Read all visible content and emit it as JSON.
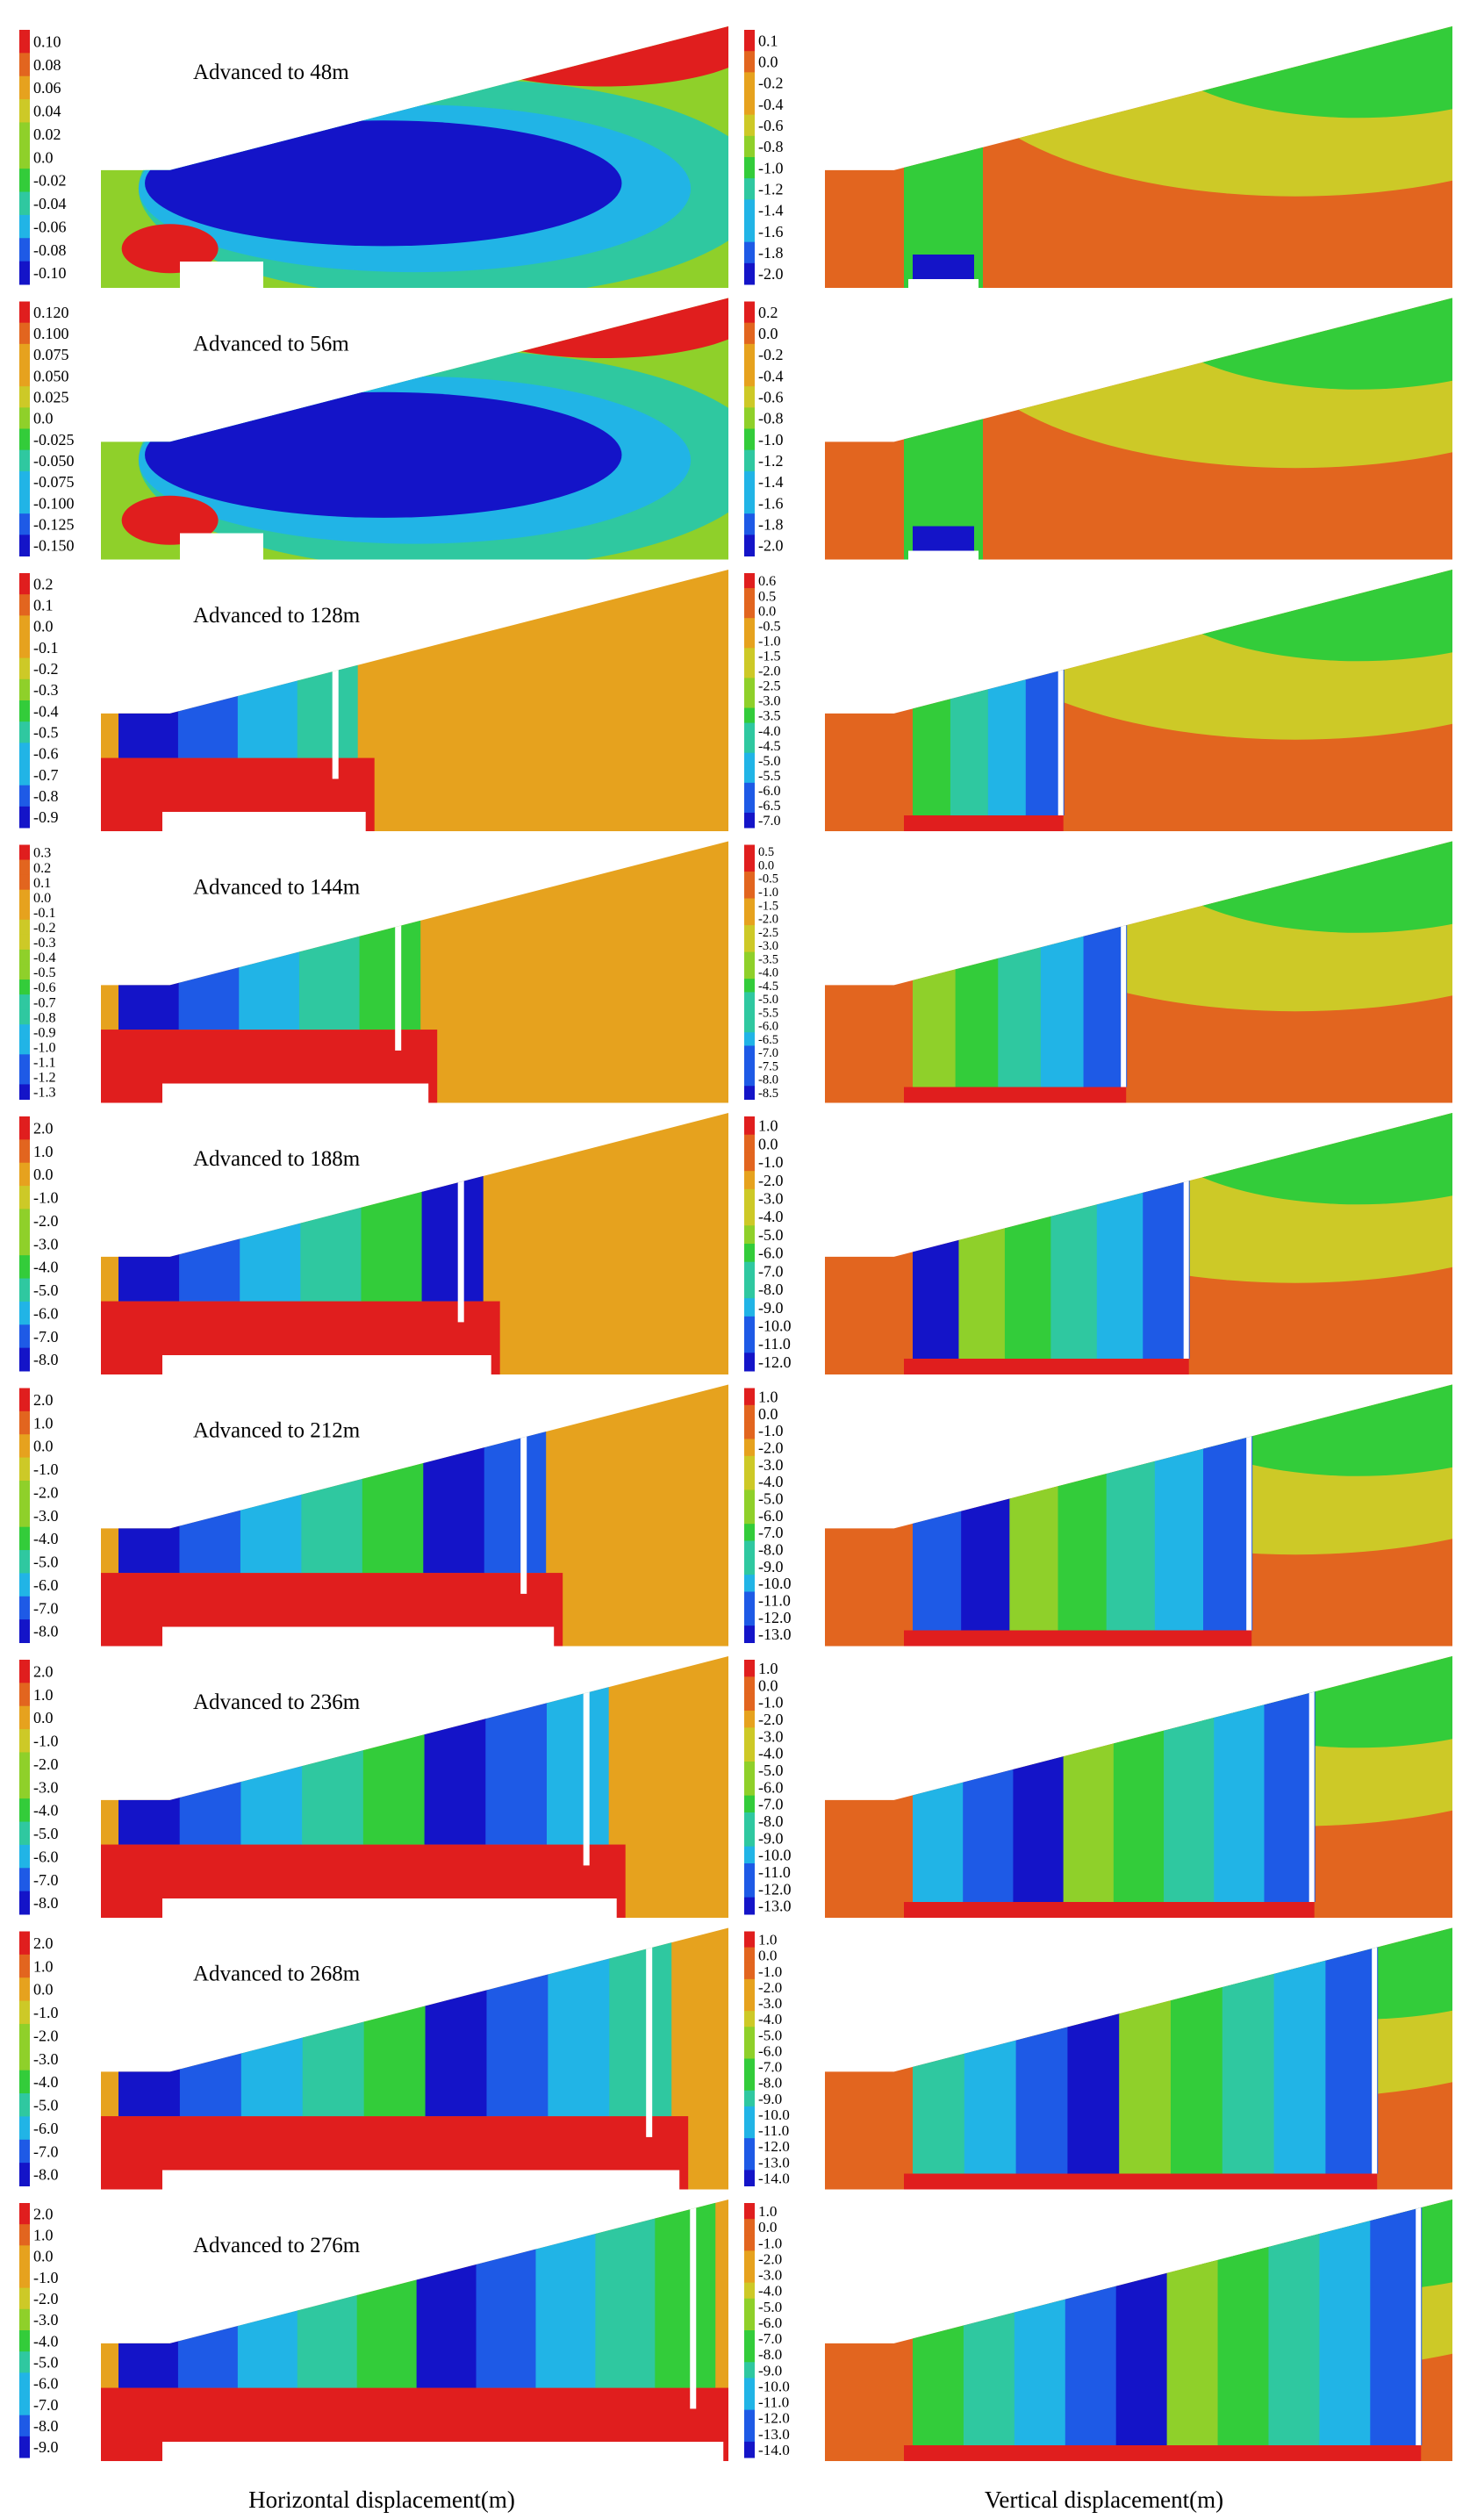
{
  "figure": {
    "x_captions": [
      "Horizontal displacement(m)",
      "Vertical displacement(m)"
    ]
  },
  "chart_data": {
    "type": "heatmap",
    "description_unit": "m",
    "colormap": [
      "#1414c8",
      "#1e5ae6",
      "#21b4e6",
      "#2fc8a0",
      "#33cc3a",
      "#8fd02a",
      "#cdc927",
      "#e6a21e",
      "#e2651f",
      "#e01e1e"
    ],
    "stages": [
      {
        "title": "Advanced to 48m",
        "horizontal_ticks": [
          "0.10",
          "0.08",
          "0.06",
          "0.04",
          "0.02",
          "0.0",
          "-0.02",
          "-0.04",
          "-0.06",
          "-0.08",
          "-0.10"
        ],
        "vertical_ticks": [
          "0.1",
          "0.0",
          "-0.2",
          "-0.4",
          "-0.6",
          "-0.8",
          "-1.0",
          "-1.2",
          "-1.4",
          "-1.6",
          "-1.8",
          "-2.0"
        ]
      },
      {
        "title": "Advanced to 56m",
        "horizontal_ticks": [
          "0.120",
          "0.100",
          "0.075",
          "0.050",
          "0.025",
          "0.0",
          "-0.025",
          "-0.050",
          "-0.075",
          "-0.100",
          "-0.125",
          "-0.150"
        ],
        "vertical_ticks": [
          "0.2",
          "0.0",
          "-0.2",
          "-0.4",
          "-0.6",
          "-0.8",
          "-1.0",
          "-1.2",
          "-1.4",
          "-1.6",
          "-1.8",
          "-2.0"
        ]
      },
      {
        "title": "Advanced to 128m",
        "horizontal_ticks": [
          "0.2",
          "0.1",
          "0.0",
          "-0.1",
          "-0.2",
          "-0.3",
          "-0.4",
          "-0.5",
          "-0.6",
          "-0.7",
          "-0.8",
          "-0.9"
        ],
        "vertical_ticks": [
          "0.6",
          "0.5",
          "0.0",
          "-0.5",
          "-1.0",
          "-1.5",
          "-2.0",
          "-2.5",
          "-3.0",
          "-3.5",
          "-4.0",
          "-4.5",
          "-5.0",
          "-5.5",
          "-6.0",
          "-6.5",
          "-7.0"
        ]
      },
      {
        "title": "Advanced to 144m",
        "horizontal_ticks": [
          "0.3",
          "0.2",
          "0.1",
          "0.0",
          "-0.1",
          "-0.2",
          "-0.3",
          "-0.4",
          "-0.5",
          "-0.6",
          "-0.7",
          "-0.8",
          "-0.9",
          "-1.0",
          "-1.1",
          "-1.2",
          "-1.3"
        ],
        "vertical_ticks": [
          "0.5",
          "0.0",
          "-0.5",
          "-1.0",
          "-1.5",
          "-2.0",
          "-2.5",
          "-3.0",
          "-3.5",
          "-4.0",
          "-4.5",
          "-5.0",
          "-5.5",
          "-6.0",
          "-6.5",
          "-7.0",
          "-7.5",
          "-8.0",
          "-8.5"
        ]
      },
      {
        "title": "Advanced to 188m",
        "horizontal_ticks": [
          "2.0",
          "1.0",
          "0.0",
          "-1.0",
          "-2.0",
          "-3.0",
          "-4.0",
          "-5.0",
          "-6.0",
          "-7.0",
          "-8.0"
        ],
        "vertical_ticks": [
          "1.0",
          "0.0",
          "-1.0",
          "-2.0",
          "-3.0",
          "-4.0",
          "-5.0",
          "-6.0",
          "-7.0",
          "-8.0",
          "-9.0",
          "-10.0",
          "-11.0",
          "-12.0"
        ]
      },
      {
        "title": "Advanced to 212m",
        "horizontal_ticks": [
          "2.0",
          "1.0",
          "0.0",
          "-1.0",
          "-2.0",
          "-3.0",
          "-4.0",
          "-5.0",
          "-6.0",
          "-7.0",
          "-8.0"
        ],
        "vertical_ticks": [
          "1.0",
          "0.0",
          "-1.0",
          "-2.0",
          "-3.0",
          "-4.0",
          "-5.0",
          "-6.0",
          "-7.0",
          "-8.0",
          "-9.0",
          "-10.0",
          "-11.0",
          "-12.0",
          "-13.0"
        ]
      },
      {
        "title": "Advanced to 236m",
        "horizontal_ticks": [
          "2.0",
          "1.0",
          "0.0",
          "-1.0",
          "-2.0",
          "-3.0",
          "-4.0",
          "-5.0",
          "-6.0",
          "-7.0",
          "-8.0"
        ],
        "vertical_ticks": [
          "1.0",
          "0.0",
          "-1.0",
          "-2.0",
          "-3.0",
          "-4.0",
          "-5.0",
          "-6.0",
          "-7.0",
          "-8.0",
          "-9.0",
          "-10.0",
          "-11.0",
          "-12.0",
          "-13.0"
        ]
      },
      {
        "title": "Advanced to 268m",
        "horizontal_ticks": [
          "2.0",
          "1.0",
          "0.0",
          "-1.0",
          "-2.0",
          "-3.0",
          "-4.0",
          "-5.0",
          "-6.0",
          "-7.0",
          "-8.0"
        ],
        "vertical_ticks": [
          "1.0",
          "0.0",
          "-1.0",
          "-2.0",
          "-3.0",
          "-4.0",
          "-5.0",
          "-6.0",
          "-7.0",
          "-8.0",
          "-9.0",
          "-10.0",
          "-11.0",
          "-12.0",
          "-13.0",
          "-14.0"
        ]
      },
      {
        "title": "Advanced to 276m",
        "horizontal_ticks": [
          "2.0",
          "1.0",
          "0.0",
          "-1.0",
          "-2.0",
          "-3.0",
          "-4.0",
          "-5.0",
          "-6.0",
          "-7.0",
          "-8.0",
          "-9.0"
        ],
        "vertical_ticks": [
          "1.0",
          "0.0",
          "-1.0",
          "-2.0",
          "-3.0",
          "-4.0",
          "-5.0",
          "-6.0",
          "-7.0",
          "-8.0",
          "-9.0",
          "-10.0",
          "-11.0",
          "-12.0",
          "-13.0",
          "-14.0"
        ]
      }
    ]
  }
}
